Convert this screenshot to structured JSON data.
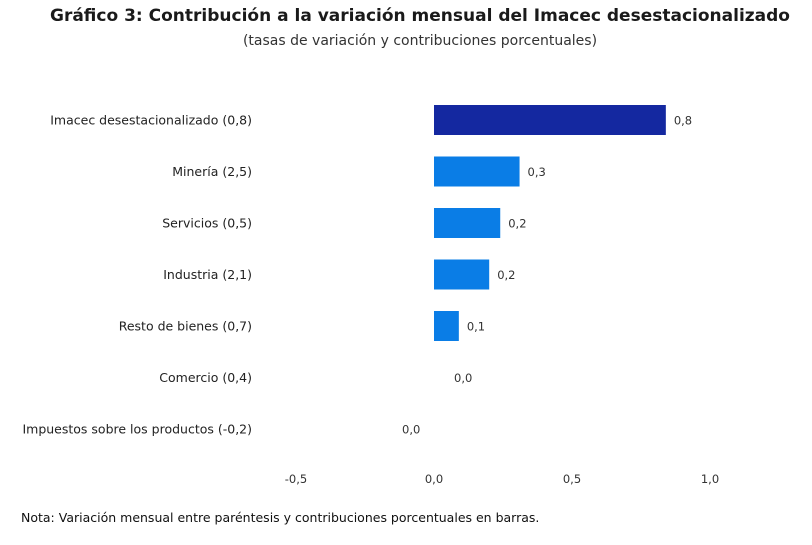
{
  "chart_data": {
    "type": "bar",
    "orientation": "horizontal",
    "title": "Gráfico 3: Contribución a la variación mensual del Imacec desestacionalizado",
    "subtitle": "(tasas de variación y contribuciones porcentuales)",
    "categories": [
      "Imacec desestacionalizado (0,8)",
      "Minería (2,5)",
      "Servicios (0,5)",
      "Industria (2,1)",
      "Resto de bienes (0,7)",
      "Comercio (0,4)",
      "Impuestos sobre los productos (-0,2)"
    ],
    "values": [
      0.84,
      0.31,
      0.24,
      0.2,
      0.09,
      0.0,
      0.0
    ],
    "value_labels": [
      "0,8",
      "0,3",
      "0,2",
      "0,2",
      "0,1",
      "0,0",
      "0,0"
    ],
    "bar_colors": [
      "#1428a0",
      "#0a7de6",
      "#0a7de6",
      "#0a7de6",
      "#0a7de6",
      "#0a7de6",
      "#0a7de6"
    ],
    "xlim": [
      -0.5,
      1.0
    ],
    "xticks": [
      -0.5,
      0.0,
      0.5,
      1.0
    ],
    "xtick_labels": [
      "-0,5",
      "0,0",
      "0,5",
      "1,0"
    ],
    "xlabel": "",
    "ylabel": "",
    "grid": false,
    "legend": "none"
  },
  "note": "Nota: Variación mensual entre paréntesis y contribuciones porcentuales en barras."
}
